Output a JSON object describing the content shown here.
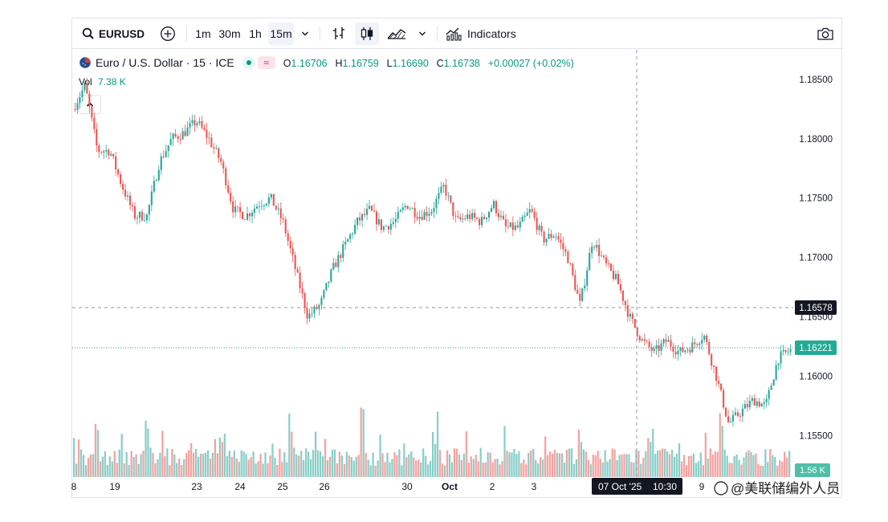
{
  "toolbar": {
    "symbol": "EURUSD",
    "intervals": [
      "1m",
      "30m",
      "1h",
      "15m"
    ],
    "active_interval": "15m",
    "indicators_label": "Indicators"
  },
  "legend": {
    "title": "Euro / U.S. Dollar · 15 · ICE",
    "open_label": "O",
    "open": "1.16706",
    "high_label": "H",
    "high": "1.16759",
    "low_label": "L",
    "low": "1.16690",
    "close_label": "C",
    "close": "1.16738",
    "change": "+0.00027 (+0.02%)"
  },
  "volume": {
    "label": "Vol",
    "value": "7.38 K",
    "last_badge": "1.56 K"
  },
  "crosshair": {
    "price_badge": "1.16578",
    "time_badge_date": "07 Oct '25",
    "time_badge_time": "10:30"
  },
  "last_price_badge": "1.16221",
  "watermark": "@美联储编外人员",
  "colors": {
    "up": "#26a69a",
    "down": "#ef5350",
    "last_price": "#22ab94",
    "crosshair_badge": "#131722"
  },
  "chart_data": {
    "type": "candlestick",
    "symbol": "EURUSD",
    "interval": "15",
    "ylim": [
      1.1515,
      1.1875
    ],
    "y_ticks": [
      "1.18500",
      "1.18000",
      "1.17500",
      "1.17000",
      "1.16500",
      "1.16000",
      "1.15500"
    ],
    "x_ticks": [
      "8",
      "19",
      "23",
      "24",
      "25",
      "26",
      "30",
      "Oct",
      "2",
      "3",
      "9"
    ],
    "price_path": [
      [
        0,
        1.1825
      ],
      [
        1,
        1.1845
      ],
      [
        2,
        1.179
      ],
      [
        3,
        1.179
      ],
      [
        4,
        1.176
      ],
      [
        5,
        1.1735
      ],
      [
        6,
        1.1735
      ],
      [
        7,
        1.178
      ],
      [
        8,
        1.18
      ],
      [
        9,
        1.1805
      ],
      [
        10,
        1.1815
      ],
      [
        11,
        1.18
      ],
      [
        12,
        1.178
      ],
      [
        13,
        1.174
      ],
      [
        14,
        1.1735
      ],
      [
        15,
        1.1745
      ],
      [
        16,
        1.175
      ],
      [
        17,
        1.173
      ],
      [
        18,
        1.169
      ],
      [
        19,
        1.165
      ],
      [
        20,
        1.166
      ],
      [
        21,
        1.169
      ],
      [
        22,
        1.171
      ],
      [
        23,
        1.173
      ],
      [
        24,
        1.174
      ],
      [
        25,
        1.1725
      ],
      [
        26,
        1.173
      ],
      [
        27,
        1.1745
      ],
      [
        28,
        1.1735
      ],
      [
        29,
        1.174
      ],
      [
        30,
        1.176
      ],
      [
        31,
        1.173
      ],
      [
        32,
        1.1735
      ],
      [
        33,
        1.173
      ],
      [
        34,
        1.1745
      ],
      [
        35,
        1.1725
      ],
      [
        36,
        1.1725
      ],
      [
        37,
        1.174
      ],
      [
        38,
        1.1715
      ],
      [
        39,
        1.172
      ],
      [
        40,
        1.17
      ],
      [
        41,
        1.166
      ],
      [
        42,
        1.1715
      ],
      [
        43,
        1.1695
      ],
      [
        44,
        1.168
      ],
      [
        45,
        1.165
      ],
      [
        46,
        1.163
      ],
      [
        47,
        1.162
      ],
      [
        48,
        1.163
      ],
      [
        49,
        1.162
      ],
      [
        50,
        1.1625
      ],
      [
        51,
        1.1635
      ],
      [
        52,
        1.16
      ],
      [
        53,
        1.156
      ],
      [
        54,
        1.157
      ],
      [
        55,
        1.158
      ],
      [
        56,
        1.1575
      ],
      [
        57,
        1.1615
      ],
      [
        58,
        1.1622
      ]
    ],
    "price_range": [
      0,
      58
    ],
    "last_price": 1.16221,
    "crosshair_price": 1.16578,
    "volume_last": "1.56 K"
  }
}
